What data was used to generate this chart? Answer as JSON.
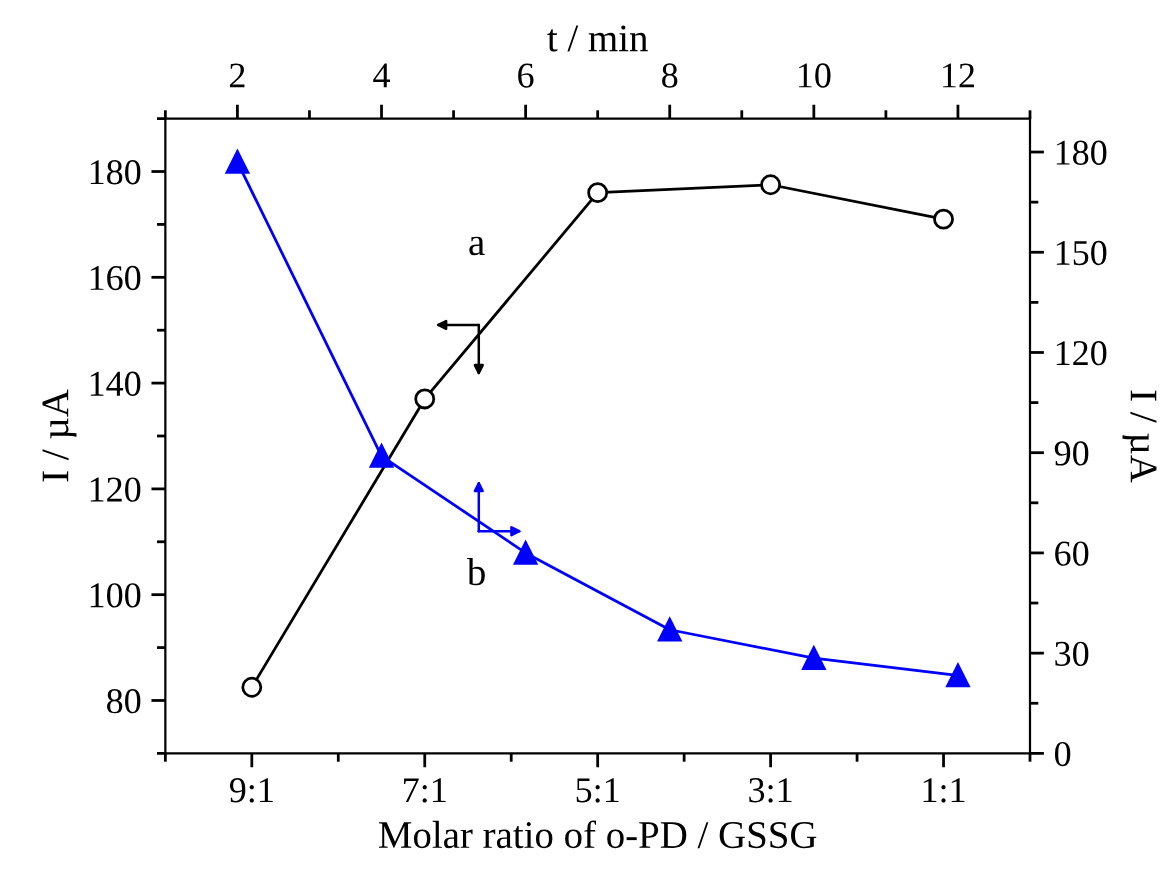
{
  "chart_data": [
    {
      "type": "line",
      "categories": [
        "9:1",
        "7:1",
        "5:1",
        "3:1",
        "1:1"
      ],
      "xlabel": "Molar ratio of o-PD / GSSG",
      "ylabel": "I / µA",
      "ylim": [
        70,
        190
      ],
      "yticks": [
        80,
        100,
        120,
        140,
        160,
        180
      ],
      "line_style": "solid",
      "marker": "circle",
      "annotations": [
        "a"
      ],
      "series": [
        {
          "color": "#000000",
          "values": [
            82.5,
            137,
            176,
            177.5,
            171
          ]
        }
      ]
    },
    {
      "type": "line",
      "x": [
        2,
        4,
        6,
        8,
        10,
        12
      ],
      "xlabel": "t / min",
      "ylabel": "I / µA",
      "xlim": [
        1,
        13
      ],
      "xticks": [
        2,
        4,
        6,
        8,
        10,
        12
      ],
      "ylim": [
        0,
        190
      ],
      "yticks": [
        0,
        30,
        60,
        90,
        120,
        150,
        180
      ],
      "line_style": "solid",
      "marker": "triangle",
      "annotations": [
        "b"
      ],
      "series": [
        {
          "color": "#0000ff",
          "values": [
            177,
            89,
            60,
            37,
            28.5,
            23.3
          ]
        }
      ]
    }
  ]
}
